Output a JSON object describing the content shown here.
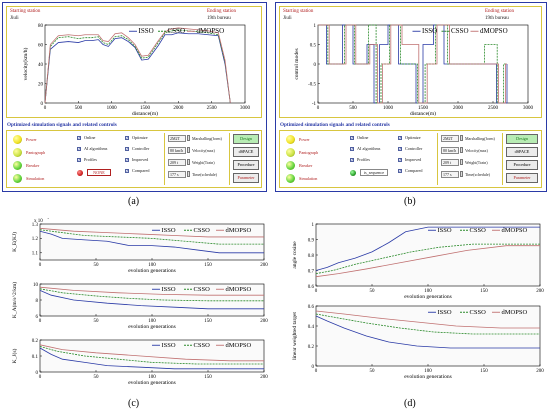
{
  "captions": {
    "a": "(a)",
    "b": "(b)",
    "c": "(c)",
    "d": "(d)"
  },
  "stations": {
    "start_label": "Starting station",
    "start_value": "Jiuli",
    "end_label": "Ending station",
    "end_value": "19th bureau"
  },
  "legend": {
    "isso": "ISSO",
    "csso": "CSSO",
    "dmopso": "dMOPSO"
  },
  "colors": {
    "isso": "#2a3aa6",
    "csso": "#2a8a2a",
    "dmopso": "#c07070"
  },
  "controls": {
    "title": "Optimized simulation signals and related controls",
    "lamps": [
      "Power",
      "Pantograph",
      "Breaker",
      "Simulation"
    ],
    "checks_col1": [
      "Online",
      "AI algorithms",
      "Profiles"
    ],
    "checks_col2": [
      "Optimize",
      "Controller",
      "Improved",
      "Compared"
    ],
    "none_label": "NONE",
    "sequence_label": "is_sequence",
    "fields_a": [
      {
        "value": "2M2T",
        "label": "Marshalling(form)"
      },
      {
        "value": "80 km/h",
        "label": "Velocity(max)"
      },
      {
        "value": "209 t",
        "label": "Weight(Train)"
      },
      {
        "value": "177 s",
        "label": "Time(schedule)"
      }
    ],
    "buttons": [
      "Design",
      "dSPACE",
      "Procedure",
      "Parameter"
    ]
  },
  "chart_data": [
    {
      "id": "a",
      "type": "line",
      "xlabel": "distance(m)",
      "ylabel": "velocity(km/h)",
      "xlim": [
        0,
        3000
      ],
      "ylim": [
        0,
        80
      ],
      "xticks": [
        0,
        500,
        1000,
        1500,
        2000,
        2500,
        3000
      ],
      "yticks": [
        0,
        20,
        40,
        60,
        80
      ],
      "series": [
        {
          "name": "ISSO",
          "x": [
            0,
            80,
            200,
            350,
            500,
            600,
            700,
            800,
            870,
            950,
            1050,
            1150,
            1250,
            1350,
            1450,
            1550,
            1700,
            1800,
            1900,
            2000,
            2150,
            2300,
            2450,
            2600,
            2700,
            2780
          ],
          "y": [
            0,
            55,
            62,
            63,
            62,
            64,
            64,
            65,
            60,
            58,
            66,
            67,
            63,
            57,
            44,
            45,
            59,
            70,
            70,
            72,
            71,
            71,
            70,
            69,
            40,
            0
          ]
        },
        {
          "name": "CSSO",
          "x": [
            0,
            80,
            200,
            350,
            500,
            600,
            700,
            800,
            870,
            950,
            1050,
            1150,
            1250,
            1350,
            1450,
            1550,
            1700,
            1800,
            1900,
            2000,
            2150,
            2300,
            2450,
            2600,
            2700,
            2780
          ],
          "y": [
            0,
            58,
            67,
            68,
            66,
            67,
            67,
            68,
            62,
            60,
            68,
            69,
            65,
            58,
            46,
            47,
            62,
            72,
            74,
            75,
            74,
            73,
            72,
            70,
            42,
            0
          ]
        },
        {
          "name": "dMOPSO",
          "x": [
            0,
            80,
            200,
            350,
            500,
            600,
            700,
            800,
            870,
            950,
            1050,
            1150,
            1250,
            1350,
            1450,
            1550,
            1700,
            1800,
            1900,
            2000,
            2150,
            2300,
            2450,
            2600,
            2700,
            2780
          ],
          "y": [
            0,
            60,
            69,
            70,
            69,
            70,
            70,
            70,
            64,
            63,
            71,
            72,
            67,
            60,
            48,
            49,
            64,
            73,
            76,
            77,
            76,
            75,
            74,
            72,
            44,
            0
          ]
        }
      ]
    },
    {
      "id": "b",
      "type": "line",
      "step": true,
      "xlabel": "distance(m)",
      "ylabel": "control modes",
      "xlim": [
        0,
        3000
      ],
      "ylim": [
        -1,
        1
      ],
      "xticks": [
        0,
        500,
        1000,
        1500,
        2000,
        2500,
        3000
      ],
      "yticks": [
        -1,
        -0.5,
        0,
        0.5,
        1
      ],
      "series": [
        {
          "name": "ISSO",
          "x": [
            0,
            120,
            350,
            500,
            700,
            800,
            880,
            1000,
            1150,
            1400,
            1500,
            1650,
            1800,
            2350,
            2550,
            2600,
            2700
          ],
          "y": [
            1,
            0,
            1,
            0,
            0.5,
            -1,
            0.5,
            1,
            0,
            -1,
            0.5,
            1,
            0,
            0,
            -1,
            -1,
            0
          ]
        },
        {
          "name": "CSSO",
          "x": [
            0,
            140,
            380,
            520,
            720,
            830,
            900,
            1020,
            1180,
            1420,
            1530,
            1680,
            1850,
            2380,
            2560,
            2650
          ],
          "y": [
            1,
            0,
            1,
            0,
            1,
            -1,
            0,
            1,
            0,
            -1,
            0,
            1,
            0,
            0.5,
            -1,
            0
          ]
        },
        {
          "name": "dMOPSO",
          "x": [
            0,
            160,
            400,
            540,
            740,
            850,
            920,
            1040,
            1200,
            1440,
            1560,
            1700,
            1880,
            2400,
            2580,
            2680
          ],
          "y": [
            1,
            0,
            1,
            0,
            0.5,
            -1,
            0,
            1,
            0.5,
            -1,
            0,
            1,
            0,
            0,
            -1,
            0
          ]
        }
      ]
    },
    {
      "id": "c1",
      "type": "line",
      "xlabel": "evolution generations",
      "ylabel": "K_E(KJ)",
      "exponent_label": "x 10",
      "exponent_power": "5",
      "xlim": [
        0,
        200
      ],
      "ylim": [
        1.05,
        1.3
      ],
      "xticks": [
        0,
        50,
        100,
        150,
        200
      ],
      "yticks": [
        1.1,
        1.2,
        1.3
      ],
      "series": [
        {
          "name": "ISSO",
          "x": [
            0,
            10,
            20,
            40,
            60,
            80,
            100,
            120,
            140,
            160,
            200
          ],
          "y": [
            1.25,
            1.23,
            1.2,
            1.19,
            1.18,
            1.15,
            1.15,
            1.14,
            1.12,
            1.1,
            1.1
          ]
        },
        {
          "name": "CSSO",
          "x": [
            0,
            20,
            40,
            70,
            100,
            130,
            160,
            200
          ],
          "y": [
            1.26,
            1.24,
            1.22,
            1.21,
            1.2,
            1.18,
            1.16,
            1.16
          ]
        },
        {
          "name": "dMOPSO",
          "x": [
            0,
            30,
            60,
            90,
            120,
            150,
            200
          ],
          "y": [
            1.27,
            1.25,
            1.24,
            1.23,
            1.22,
            1.21,
            1.21
          ]
        }
      ]
    },
    {
      "id": "c2",
      "type": "line",
      "xlabel": "evolution generations",
      "ylabel": "K_A(m/s^2/km)",
      "xlim": [
        0,
        200
      ],
      "ylim": [
        6,
        10
      ],
      "xticks": [
        0,
        50,
        100,
        150,
        200
      ],
      "yticks": [
        6,
        8,
        10
      ],
      "series": [
        {
          "name": "ISSO",
          "x": [
            0,
            10,
            30,
            60,
            90,
            120,
            150,
            200
          ],
          "y": [
            9.2,
            8.6,
            8.0,
            7.6,
            7.3,
            7.1,
            6.9,
            6.9
          ]
        },
        {
          "name": "CSSO",
          "x": [
            0,
            20,
            50,
            80,
            110,
            150,
            200
          ],
          "y": [
            9.4,
            8.9,
            8.5,
            8.2,
            8.0,
            7.9,
            7.9
          ]
        },
        {
          "name": "dMOPSO",
          "x": [
            0,
            30,
            70,
            110,
            150,
            200
          ],
          "y": [
            9.6,
            9.2,
            8.9,
            8.7,
            8.6,
            8.6
          ]
        }
      ]
    },
    {
      "id": "c3",
      "type": "line",
      "xlabel": "evolution generations",
      "ylabel": "K_J(s)",
      "xlim": [
        0,
        200
      ],
      "ylim": [
        0,
        0.2
      ],
      "xticks": [
        0,
        50,
        100,
        150,
        200
      ],
      "yticks": [
        0,
        0.1,
        0.2
      ],
      "series": [
        {
          "name": "ISSO",
          "x": [
            0,
            10,
            20,
            40,
            60,
            90,
            120,
            160,
            200
          ],
          "y": [
            0.15,
            0.11,
            0.08,
            0.06,
            0.04,
            0.03,
            0.02,
            0.02,
            0.02
          ]
        },
        {
          "name": "CSSO",
          "x": [
            0,
            15,
            40,
            70,
            100,
            140,
            200
          ],
          "y": [
            0.16,
            0.13,
            0.1,
            0.08,
            0.06,
            0.05,
            0.05
          ]
        },
        {
          "name": "dMOPSO",
          "x": [
            0,
            20,
            50,
            90,
            130,
            170,
            200
          ],
          "y": [
            0.17,
            0.14,
            0.12,
            0.1,
            0.08,
            0.07,
            0.07
          ]
        }
      ]
    },
    {
      "id": "d1",
      "type": "line",
      "xlabel": "evolution generations",
      "ylabel": "angle cosine",
      "xlim": [
        0,
        200
      ],
      "ylim": [
        0.6,
        1
      ],
      "xticks": [
        0,
        50,
        100,
        150,
        200
      ],
      "yticks": [
        0.6,
        0.7,
        0.8,
        0.9,
        1
      ],
      "series": [
        {
          "name": "ISSO",
          "x": [
            0,
            10,
            20,
            35,
            50,
            65,
            80,
            100,
            120,
            150,
            200
          ],
          "y": [
            0.7,
            0.72,
            0.75,
            0.78,
            0.82,
            0.88,
            0.95,
            0.98,
            0.98,
            0.98,
            0.98
          ]
        },
        {
          "name": "CSSO",
          "x": [
            0,
            15,
            35,
            60,
            85,
            110,
            140,
            200
          ],
          "y": [
            0.68,
            0.7,
            0.74,
            0.78,
            0.82,
            0.85,
            0.87,
            0.87
          ]
        },
        {
          "name": "dMOPSO",
          "x": [
            0,
            20,
            45,
            75,
            105,
            135,
            170,
            200
          ],
          "y": [
            0.66,
            0.68,
            0.71,
            0.75,
            0.79,
            0.83,
            0.86,
            0.86
          ]
        }
      ]
    },
    {
      "id": "d2",
      "type": "line",
      "xlabel": "evolution generations",
      "ylabel": "linear weighted target",
      "xlim": [
        0,
        200
      ],
      "ylim": [
        0,
        0.6
      ],
      "xticks": [
        0,
        50,
        100,
        150,
        200
      ],
      "yticks": [
        0,
        0.2,
        0.4,
        0.6
      ],
      "series": [
        {
          "name": "ISSO",
          "x": [
            0,
            10,
            25,
            45,
            65,
            90,
            120,
            160,
            200
          ],
          "y": [
            0.5,
            0.45,
            0.38,
            0.3,
            0.24,
            0.2,
            0.18,
            0.18,
            0.18
          ]
        },
        {
          "name": "CSSO",
          "x": [
            0,
            20,
            45,
            75,
            105,
            140,
            200
          ],
          "y": [
            0.52,
            0.48,
            0.43,
            0.38,
            0.34,
            0.32,
            0.32
          ]
        },
        {
          "name": "dMOPSO",
          "x": [
            0,
            25,
            55,
            90,
            125,
            165,
            200
          ],
          "y": [
            0.55,
            0.52,
            0.48,
            0.44,
            0.4,
            0.38,
            0.38
          ]
        }
      ]
    }
  ]
}
